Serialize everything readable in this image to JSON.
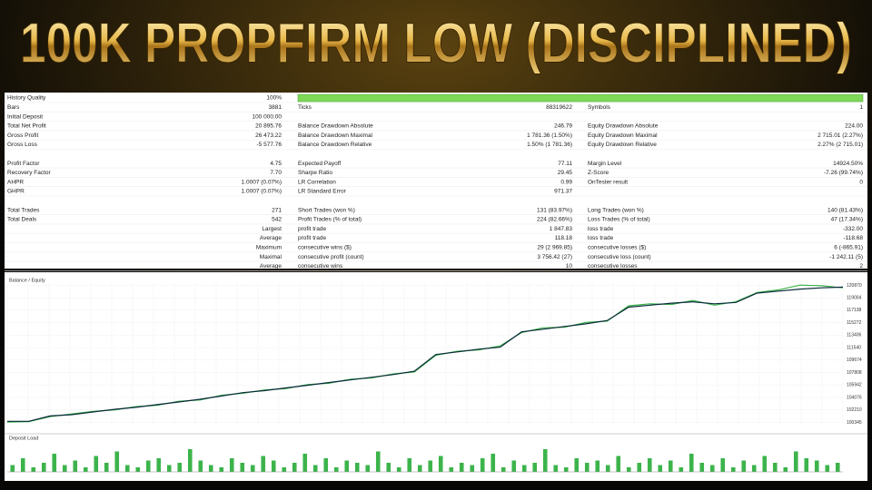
{
  "header": {
    "title": "100K PROPFIRM LOW (DISCIPLINED)"
  },
  "report": {
    "rows": [
      [
        "History Quality",
        "100%",
        null,
        null,
        null,
        null
      ],
      [
        "Bars",
        "3881",
        "Ticks",
        "88319622",
        "Symbols",
        "1"
      ],
      [
        "Initial Deposit",
        "100 000.00",
        null,
        null,
        null,
        null
      ],
      [
        "Total Net Profit",
        "20 895.76",
        "Balance Drawdown Absolute",
        "246.79",
        "Equity Drawdown Absolute",
        "224.00"
      ],
      [
        "Gross Profit",
        "26 473.22",
        "Balance Drawdown Maximal",
        "1 781.36 (1.50%)",
        "Equity Drawdown Maximal",
        "2 715.01 (2.27%)"
      ],
      [
        "Gross Loss",
        "-5 577.76",
        "Balance Drawdown Relative",
        "1.50% (1 781.36)",
        "Equity Drawdown Relative",
        "2.27% (2 715.01)"
      ],
      null,
      [
        "Profit Factor",
        "4.75",
        "Expected Payoff",
        "77.11",
        "Margin Level",
        "14924.50%"
      ],
      [
        "Recovery Factor",
        "7.70",
        "Sharpe Ratio",
        "29.45",
        "Z-Score",
        "-7.26 (99.74%)"
      ],
      [
        "AHPR",
        "1.0007 (0.07%)",
        "LR Correlation",
        "0.99",
        "OnTester result",
        "0"
      ],
      [
        "GHPR",
        "1.0007 (0.07%)",
        "LR Standard Error",
        "971.37",
        null,
        null
      ],
      null,
      [
        "Total Trades",
        "271",
        "Short Trades (won %)",
        "131 (83.97%)",
        "Long Trades (won %)",
        "140 (81.43%)"
      ],
      [
        "Total Deals",
        "542",
        "Profit Trades (% of total)",
        "224 (82.66%)",
        "Loss Trades (% of total)",
        "47 (17.34%)"
      ],
      [
        null,
        "Largest",
        "profit trade",
        "1 847.83",
        "loss trade",
        "-332.00"
      ],
      [
        null,
        "Average",
        "profit trade",
        "118.18",
        "loss trade",
        "-118.68"
      ],
      [
        null,
        "Maximum",
        "consecutive wins ($)",
        "29 (2 969.85)",
        "consecutive losses ($)",
        "6 (-865.91)"
      ],
      [
        null,
        "Maximal",
        "consecutive profit (count)",
        "3 756.42 (27)",
        "consecutive loss (count)",
        "-1 242.11 (5)"
      ],
      [
        null,
        "Average",
        "consecutive wins",
        "10",
        "consecutive losses",
        "2"
      ]
    ]
  },
  "chart_data": [
    {
      "type": "line",
      "title": "Balance / Equity",
      "ylim": [
        100000,
        121200
      ],
      "yticks": [
        100345,
        102210,
        104076,
        105942,
        107808,
        109674,
        111540,
        113406,
        115272,
        117138,
        119004,
        120870
      ],
      "series": [
        {
          "color": "#0a2a3a",
          "values": [
            100500,
            100500,
            101300,
            101500,
            101900,
            102300,
            102600,
            103000,
            103400,
            103800,
            104300,
            104800,
            105100,
            105500,
            105900,
            106300,
            106700,
            107100,
            107500,
            108000,
            110500,
            110900,
            111300,
            111600,
            113900,
            114300,
            114700,
            115100,
            115600,
            117600,
            117900,
            118200,
            118400,
            118100,
            118300,
            119700,
            120000,
            120300,
            120500,
            120600
          ]
        },
        {
          "color": "#3cb44b",
          "values": [
            100400,
            100450,
            101200,
            101600,
            102000,
            102200,
            102700,
            102900,
            103500,
            103700,
            104400,
            104700,
            105200,
            105400,
            106000,
            106200,
            106800,
            107000,
            107600,
            107900,
            110400,
            111000,
            111200,
            111800,
            113800,
            114500,
            114600,
            115300,
            115500,
            117800,
            118100,
            118000,
            118600,
            117900,
            118400,
            119800,
            120200,
            120900,
            120800,
            120500
          ]
        }
      ]
    },
    {
      "type": "bar",
      "title": "Deposit Load",
      "ylim": [
        0,
        12
      ],
      "color": "#3cb44b",
      "values": [
        3,
        6,
        2,
        4,
        8,
        3,
        5,
        2,
        7,
        4,
        9,
        3,
        2,
        5,
        6,
        3,
        4,
        10,
        5,
        3,
        2,
        6,
        4,
        3,
        7,
        5,
        2,
        4,
        8,
        3,
        6,
        2,
        5,
        4,
        3,
        9,
        4,
        2,
        6,
        3,
        5,
        7,
        2,
        4,
        3,
        6,
        8,
        2,
        5,
        3,
        4,
        10,
        3,
        2,
        6,
        4,
        5,
        3,
        7,
        2,
        4,
        6,
        3,
        5,
        2,
        8,
        4,
        3,
        6,
        2,
        5,
        3,
        7,
        4,
        2,
        9,
        6,
        5,
        3,
        4
      ]
    }
  ]
}
